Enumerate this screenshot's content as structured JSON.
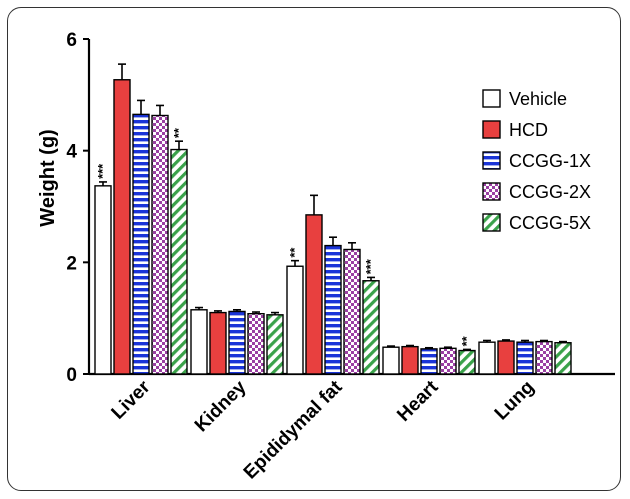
{
  "chart_data": {
    "type": "bar",
    "ylabel": "Weight (g)",
    "ylim": [
      0,
      6
    ],
    "yticks": [
      "0",
      "2",
      "4",
      "6"
    ],
    "categories": [
      "Liver",
      "Kidney",
      "Epididymal fat",
      "Heart",
      "Lung"
    ],
    "legend_position": "top-right",
    "series": [
      {
        "name": "Vehicle",
        "color": "#ffffff",
        "pattern": "none",
        "values": [
          3.37,
          1.15,
          1.93,
          0.48,
          0.57
        ],
        "errors": [
          0.07,
          0.04,
          0.1,
          0.02,
          0.03
        ],
        "significance": [
          "***",
          "",
          "**",
          "",
          ""
        ]
      },
      {
        "name": "HCD",
        "color": "#e8403f",
        "pattern": "solid",
        "values": [
          5.27,
          1.1,
          2.85,
          0.49,
          0.59
        ],
        "errors": [
          0.28,
          0.03,
          0.35,
          0.02,
          0.02
        ],
        "significance": [
          "",
          "",
          "",
          "",
          ""
        ]
      },
      {
        "name": "CCGG-1X",
        "color": "#1a34d8",
        "pattern": "horizontal-stripes",
        "values": [
          4.65,
          1.12,
          2.3,
          0.45,
          0.57
        ],
        "errors": [
          0.25,
          0.03,
          0.15,
          0.02,
          0.03
        ],
        "significance": [
          "",
          "",
          "",
          "",
          ""
        ]
      },
      {
        "name": "CCGG-2X",
        "color": "#9a3fa3",
        "pattern": "checker",
        "values": [
          4.63,
          1.08,
          2.23,
          0.46,
          0.58
        ],
        "errors": [
          0.18,
          0.03,
          0.12,
          0.02,
          0.02
        ],
        "significance": [
          "",
          "",
          "",
          "",
          ""
        ]
      },
      {
        "name": "CCGG-5X",
        "color": "#3aa24a",
        "pattern": "diagonal-stripes",
        "values": [
          4.02,
          1.06,
          1.67,
          0.42,
          0.56
        ],
        "errors": [
          0.15,
          0.04,
          0.06,
          0.02,
          0.02
        ],
        "significance": [
          "**",
          "",
          "***",
          "**",
          ""
        ]
      }
    ]
  }
}
